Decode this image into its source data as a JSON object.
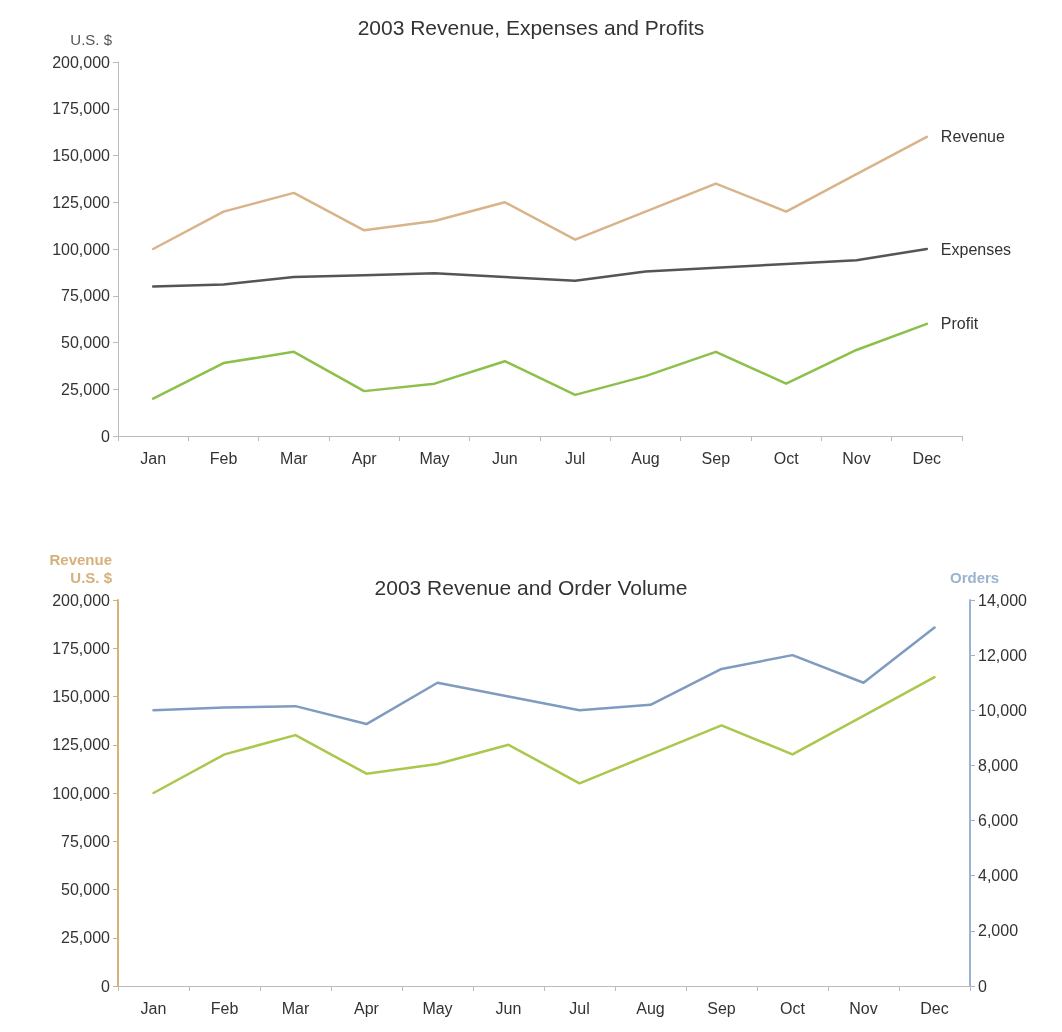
{
  "chart_data": [
    {
      "type": "line",
      "title": "2003 Revenue, Expenses and Profits",
      "ylabel": "U.S. $",
      "categories": [
        "Jan",
        "Feb",
        "Mar",
        "Apr",
        "May",
        "Jun",
        "Jul",
        "Aug",
        "Sep",
        "Oct",
        "Nov",
        "Dec"
      ],
      "series": [
        {
          "name": "Revenue",
          "color": "#d9b48a",
          "values": [
            100000,
            120000,
            130000,
            110000,
            115000,
            125000,
            105000,
            120000,
            135000,
            120000,
            140000,
            160000
          ]
        },
        {
          "name": "Expenses",
          "color": "#555555",
          "values": [
            80000,
            81000,
            85000,
            86000,
            87000,
            85000,
            83000,
            88000,
            90000,
            92000,
            94000,
            100000
          ]
        },
        {
          "name": "Profit",
          "color": "#8cc04a",
          "values": [
            20000,
            39000,
            45000,
            24000,
            28000,
            40000,
            22000,
            32000,
            45000,
            28000,
            46000,
            60000
          ]
        }
      ],
      "ylim": [
        0,
        200000
      ],
      "yticks": [
        0,
        {
          "value": 25000,
          "label": "25,000"
        },
        {
          "value": 50000,
          "label": "50,000"
        },
        {
          "value": 75000,
          "label": "75,000"
        },
        {
          "value": 100000,
          "label": "100,000"
        },
        {
          "value": 125000,
          "label": "125,000"
        },
        {
          "value": 150000,
          "label": "150,000"
        },
        {
          "value": 175000,
          "label": "175,000"
        },
        {
          "value": 200000,
          "label": "200,000"
        }
      ],
      "grid": false,
      "legend": false,
      "marker": "none",
      "line_style": "solid"
    },
    {
      "type": "line",
      "title": "2003 Revenue and Order Volume",
      "ylabel": "Revenue\nU.S. $",
      "y2label": "Orders",
      "categories": [
        "Jan",
        "Feb",
        "Mar",
        "Apr",
        "May",
        "Jun",
        "Jul",
        "Aug",
        "Sep",
        "Oct",
        "Nov",
        "Dec"
      ],
      "series": [
        {
          "color": "#a9c84c",
          "values": [
            100000,
            120000,
            130000,
            110000,
            115000,
            125000,
            105000,
            120000,
            135000,
            120000,
            140000,
            160000
          ]
        },
        {
          "color": "#7f9bbf",
          "axis": "y2",
          "values": [
            10000,
            10100,
            10150,
            9500,
            11000,
            10500,
            10000,
            10200,
            11500,
            12000,
            11000,
            13000
          ]
        }
      ],
      "ylim": [
        0,
        200000
      ],
      "yticks": [
        0,
        {
          "value": 25000,
          "label": "25,000"
        },
        {
          "value": 50000,
          "label": "50,000"
        },
        {
          "value": 75000,
          "label": "75,000"
        },
        {
          "value": 100000,
          "label": "100,000"
        },
        {
          "value": 125000,
          "label": "125,000"
        },
        {
          "value": 150000,
          "label": "150,000"
        },
        {
          "value": 175000,
          "label": "175,000"
        },
        {
          "value": 200000,
          "label": "200,000"
        }
      ],
      "y2lim": [
        0,
        14000
      ],
      "y2ticks": [
        0,
        {
          "value": 2000,
          "label": "2,000"
        },
        {
          "value": 4000,
          "label": "4,000"
        },
        {
          "value": 6000,
          "label": "6,000"
        },
        {
          "value": 8000,
          "label": "8,000"
        },
        {
          "value": 10000,
          "label": "10,000"
        },
        {
          "value": 12000,
          "label": "12,000"
        },
        {
          "value": 14000,
          "label": "14,000"
        }
      ],
      "grid": false,
      "legend": false,
      "marker": "none",
      "line_style": "solid"
    }
  ]
}
